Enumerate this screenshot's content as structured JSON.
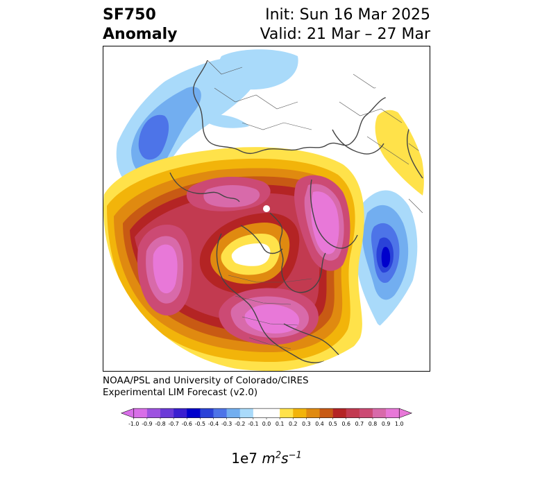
{
  "title": {
    "variable": "SF750",
    "quantity": "Anomaly",
    "init": "Init: Sun 16 Mar 2025",
    "valid": "Valid: 21 Mar – 27 Mar"
  },
  "credit": {
    "line1": "NOAA/PSL and University of Colorado/CIRES",
    "line2": "Experimental LIM Forecast (v2.0)"
  },
  "colorbar": {
    "levels": [
      -1.0,
      -0.9,
      -0.8,
      -0.7,
      -0.6,
      -0.5,
      -0.4,
      -0.3,
      -0.2,
      -0.1,
      0.0,
      0.1,
      0.2,
      0.3,
      0.4,
      0.5,
      0.6,
      0.7,
      0.8,
      0.9,
      1.0
    ],
    "tick_labels": [
      "-1.0",
      "-0.9",
      "-0.8",
      "-0.7",
      "-0.6",
      "-0.5",
      "-0.4",
      "-0.3",
      "-0.2",
      "-0.1",
      "0.0",
      "0.1",
      "0.2",
      "0.3",
      "0.4",
      "0.5",
      "0.6",
      "0.7",
      "0.8",
      "0.9",
      "1.0"
    ],
    "colors": [
      "#d86ee8",
      "#9d52e0",
      "#6b3ad8",
      "#3a1fd0",
      "#0000cc",
      "#2a42d8",
      "#4d74e8",
      "#72aef0",
      "#a9dafa",
      "#ffffff",
      "#ffffff",
      "#ffe24a",
      "#f2b40a",
      "#e08a10",
      "#c85a14",
      "#b42424",
      "#c23a50",
      "#cc4a74",
      "#d86aaa",
      "#e878d8"
    ],
    "extend_low_color": "#d86ee8",
    "extend_high_color": "#e878d8",
    "unit_prefix": "1e7",
    "unit_m": "m",
    "unit_m_exp": "2",
    "unit_s": "s",
    "unit_s_exp": "−1"
  }
}
